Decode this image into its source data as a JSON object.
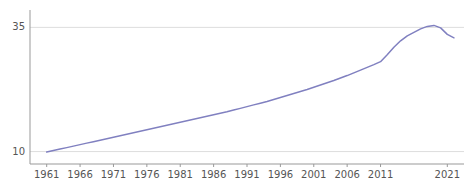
{
  "chart_data": {
    "type": "line",
    "x": [
      1961,
      1962,
      1963,
      1964,
      1965,
      1966,
      1967,
      1968,
      1969,
      1970,
      1971,
      1972,
      1973,
      1974,
      1975,
      1976,
      1977,
      1978,
      1979,
      1980,
      1981,
      1982,
      1983,
      1984,
      1985,
      1986,
      1987,
      1988,
      1989,
      1990,
      1991,
      1992,
      1993,
      1994,
      1995,
      1996,
      1997,
      1998,
      1999,
      2000,
      2001,
      2002,
      2003,
      2004,
      2005,
      2006,
      2007,
      2008,
      2009,
      2010,
      2011,
      2012,
      2013,
      2014,
      2015,
      2016,
      2017,
      2018,
      2019,
      2020,
      2021,
      2022
    ],
    "values": [
      9.9,
      10.2,
      10.5,
      10.8,
      11.1,
      11.4,
      11.7,
      12.0,
      12.3,
      12.6,
      12.9,
      13.2,
      13.5,
      13.8,
      14.1,
      14.4,
      14.7,
      15.0,
      15.3,
      15.6,
      15.9,
      16.2,
      16.5,
      16.8,
      17.1,
      17.4,
      17.7,
      18.0,
      18.35,
      18.7,
      19.05,
      19.4,
      19.75,
      20.1,
      20.5,
      20.9,
      21.3,
      21.7,
      22.1,
      22.5,
      22.95,
      23.4,
      23.85,
      24.3,
      24.8,
      25.3,
      25.85,
      26.4,
      26.95,
      27.5,
      28.1,
      29.5,
      31.0,
      32.3,
      33.3,
      34.0,
      34.7,
      35.2,
      35.4,
      34.9,
      33.6,
      32.9
    ],
    "color": "#8080c0",
    "xlim": [
      1958.5,
      2023.5
    ],
    "ylim": [
      7.5,
      38.5
    ],
    "xticks": [
      1961,
      1966,
      1971,
      1976,
      1981,
      1986,
      1991,
      1996,
      2001,
      2006,
      2011,
      2021
    ],
    "yticks": [
      10,
      35
    ],
    "grid": true
  }
}
